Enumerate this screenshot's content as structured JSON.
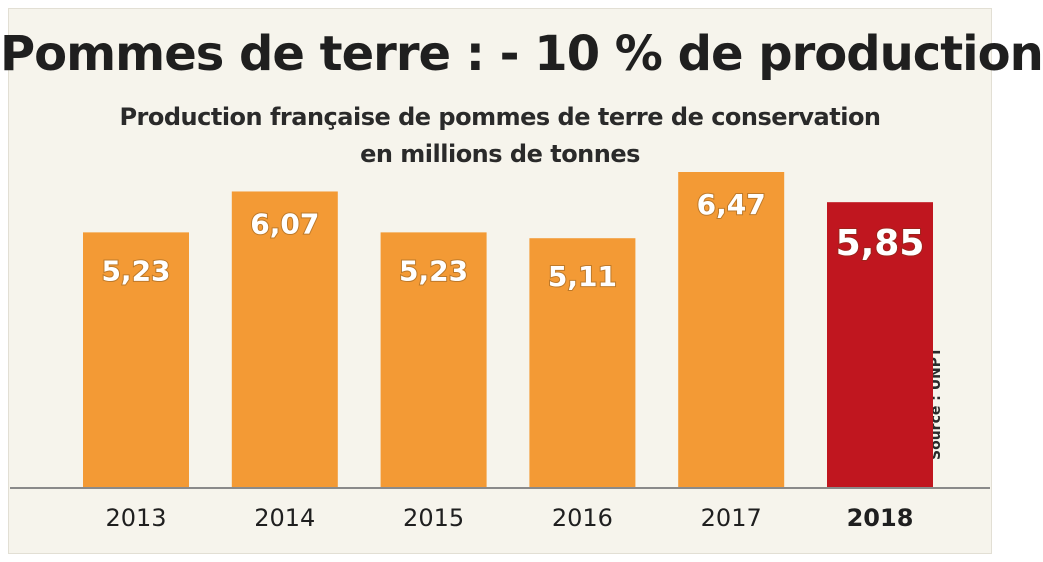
{
  "title": "Pommes de terre : - 10 % de production",
  "subtitle_line1": "Production française de pommes de terre de conservation",
  "subtitle_line2": "en millions de tonnes",
  "source": "Source : UNPT",
  "colors": {
    "bar": "#f39a35",
    "highlight": "#c0161f",
    "highlight_text": "#9e1a24",
    "axis": "#8a8a8a"
  },
  "chart_data": {
    "type": "bar",
    "categories": [
      "2013",
      "2014",
      "2015",
      "2016",
      "2017",
      "2018"
    ],
    "values": [
      5.23,
      6.07,
      5.23,
      5.11,
      6.47,
      5.85
    ],
    "value_labels": [
      "5,23",
      "6,07",
      "5,23",
      "5,11",
      "6,47",
      "5,85"
    ],
    "highlight": "2018",
    "title": "Pommes de terre : - 10 % de production",
    "xlabel": "",
    "ylabel": "",
    "ylim": [
      0,
      6.47
    ],
    "grid": false,
    "legend": "none"
  }
}
